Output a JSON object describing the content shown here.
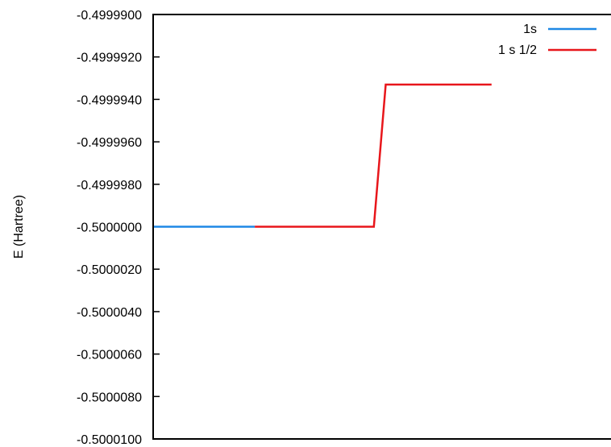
{
  "chart_data": {
    "type": "line",
    "title": "",
    "xlabel": "",
    "ylabel": "E (Hartree)",
    "ylim": [
      -0.50001,
      -0.49999
    ],
    "xlim": [
      0,
      1
    ],
    "x_ticks_shown": false,
    "grid": false,
    "legend_position": "top-right",
    "y_tick_labels": [
      "-0.4999900",
      "-0.4999920",
      "-0.4999940",
      "-0.4999960",
      "-0.4999980",
      "-0.5000000",
      "-0.5000020",
      "-0.5000040",
      "-0.5000060",
      "-0.5000080",
      "-0.5000100"
    ],
    "y_tick_values": [
      -0.49999,
      -0.499992,
      -0.499994,
      -0.499996,
      -0.499998,
      -0.5,
      -0.500002,
      -0.500004,
      -0.500006,
      -0.500008,
      -0.50001
    ],
    "series": [
      {
        "name": "1s",
        "color": "#1e88e5",
        "x": [
          0.0,
          0.222
        ],
        "y": [
          -0.5,
          -0.5
        ]
      },
      {
        "name": "1 s 1/2",
        "color": "#e8161b",
        "x": [
          0.222,
          0.482,
          0.508,
          0.739
        ],
        "y": [
          -0.5,
          -0.5,
          -0.4999933,
          -0.4999933
        ]
      }
    ]
  }
}
